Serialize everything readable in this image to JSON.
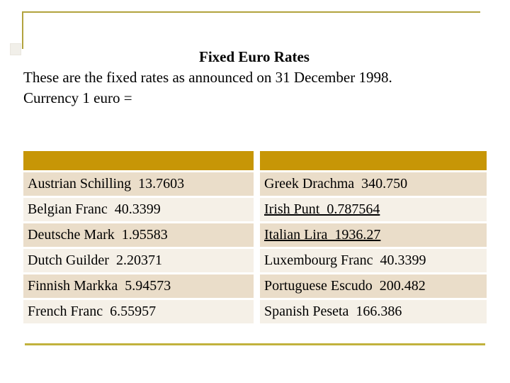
{
  "slide": {
    "title": "Fixed Euro Rates",
    "body_lines": [
      "These are the fixed rates as announced on 31 December 1998.",
      "Currency 1 euro ="
    ]
  },
  "table": {
    "header": {
      "left_label": "",
      "right_label": ""
    },
    "left_rows": [
      {
        "currency": "Austrian Schilling",
        "rate": "13.7603",
        "text": "Austrian Schilling  13.7603",
        "underlined": false
      },
      {
        "currency": "Belgian Franc",
        "rate": "40.3399",
        "text": "Belgian Franc  40.3399",
        "underlined": false
      },
      {
        "currency": "Deutsche Mark",
        "rate": "1.95583",
        "text": "Deutsche Mark  1.95583",
        "underlined": false
      },
      {
        "currency": "Dutch Guilder",
        "rate": "2.20371",
        "text": "Dutch Guilder  2.20371",
        "underlined": false
      },
      {
        "currency": "Finnish Markka",
        "rate": "5.94573",
        "text": "Finnish Markka  5.94573",
        "underlined": false
      },
      {
        "currency": "French Franc",
        "rate": "6.55957",
        "text": "French Franc  6.55957",
        "underlined": false
      }
    ],
    "right_rows": [
      {
        "currency": "Greek Drachma",
        "rate": "340.750",
        "text": "Greek Drachma  340.750",
        "underlined": false
      },
      {
        "currency": "Irish Punt",
        "rate": "0.787564",
        "text": "Irish Punt  0.787564",
        "underlined": true
      },
      {
        "currency": "Italian Lira",
        "rate": "1936.27",
        "text": "Italian Lira  1936.27",
        "underlined": true
      },
      {
        "currency": "Luxembourg Franc",
        "rate": "40.3399",
        "text": "Luxembourg Franc  40.3399",
        "underlined": false
      },
      {
        "currency": "Portuguese Escudo",
        "rate": "200.482",
        "text": "Portuguese Escudo  200.482",
        "underlined": false
      },
      {
        "currency": "Spanish Peseta",
        "rate": "166.386",
        "text": "Spanish Peseta  166.386",
        "underlined": false
      }
    ]
  },
  "colors": {
    "header_gold": "#c79606",
    "row_dark_beige": "#eaddc9",
    "row_light_beige": "#f5f0e7",
    "corner_border_gold": "#b2a33e",
    "bottom_line_gold": "#c1b23d",
    "background": "#ffffff",
    "text": "#000000"
  }
}
